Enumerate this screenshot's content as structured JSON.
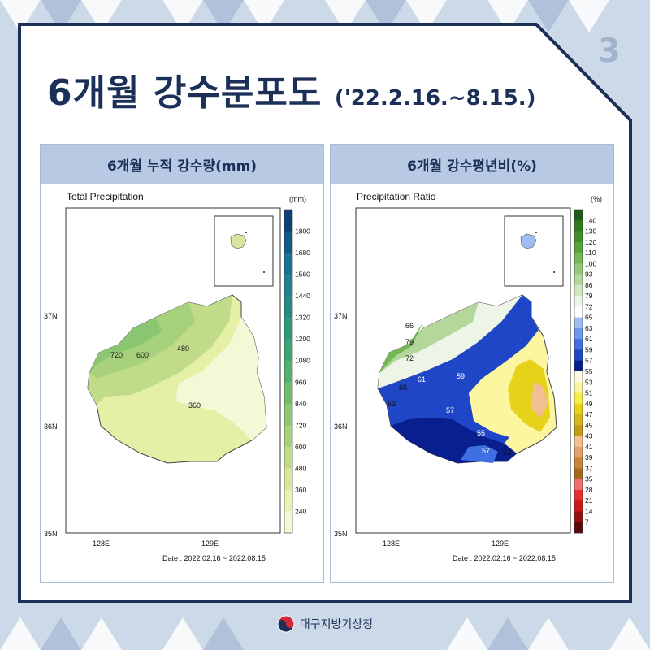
{
  "header": {
    "page_number": "3",
    "title": "6개월 강수분포도",
    "period": "('22.2.16.~8.15.)"
  },
  "panels": [
    {
      "heading": "6개월 누적 강수량(mm)",
      "map_title": "Total Precipitation",
      "unit": "(mm)",
      "date": "Date : 2022.02.16 ~ 2022.08.15",
      "lat_labels": [
        "37N",
        "36N",
        "35N"
      ],
      "lon_labels": [
        "128E",
        "129E"
      ],
      "contour_labels": [
        "720",
        "600",
        "480",
        "360"
      ],
      "colorbar": {
        "ticks": [
          "1800",
          "1680",
          "1560",
          "1440",
          "1320",
          "1200",
          "1080",
          "960",
          "840",
          "720",
          "600",
          "480",
          "360",
          "240"
        ],
        "colors": [
          "#0c3f73",
          "#105a86",
          "#1a718f",
          "#217f8f",
          "#228b84",
          "#2a9a7a",
          "#3aa675",
          "#52b16f",
          "#6fbc6c",
          "#8cc672",
          "#a7d27b",
          "#c1dc88",
          "#d9e79c",
          "#eaf1b4",
          "#f5f8d6"
        ]
      }
    },
    {
      "heading": "6개월 강수평년비(%)",
      "map_title": "Precipitation Ratio",
      "unit": "(%)",
      "date": "Date : 2022.02.16 ~ 2022.08.15",
      "lat_labels": [
        "37N",
        "36N",
        "35N"
      ],
      "lon_labels": [
        "128E",
        "129E"
      ],
      "contour_labels": [
        "66",
        "79",
        "72",
        "61",
        "59",
        "65",
        "63",
        "57",
        "55",
        "57",
        "53"
      ],
      "colorbar": {
        "ticks": [
          "140",
          "130",
          "120",
          "110",
          "100",
          "93",
          "86",
          "79",
          "72",
          "65",
          "63",
          "61",
          "59",
          "57",
          "55",
          "53",
          "51",
          "49",
          "47",
          "45",
          "43",
          "41",
          "39",
          "37",
          "35",
          "28",
          "21",
          "14",
          "7"
        ],
        "colors": [
          "#1e5a14",
          "#2f7a1e",
          "#3f8f2a",
          "#57a53a",
          "#74b855",
          "#95c978",
          "#b4d89c",
          "#d1e8c3",
          "#ecf5e6",
          "#ffffff",
          "#9fbdf2",
          "#6f97ea",
          "#3f6fe0",
          "#2046c8",
          "#0a1f8f",
          "#fffbe0",
          "#fdf6a0",
          "#f6ee4a",
          "#e7d21a",
          "#d6b61a",
          "#c49a18",
          "#f2c090",
          "#e2a06a",
          "#c9853a",
          "#a66a1e",
          "#ee6f6f",
          "#e63030",
          "#c81818",
          "#961010",
          "#5a0a0a"
        ]
      }
    }
  ],
  "footer": {
    "agency": "대구지방기상청"
  }
}
